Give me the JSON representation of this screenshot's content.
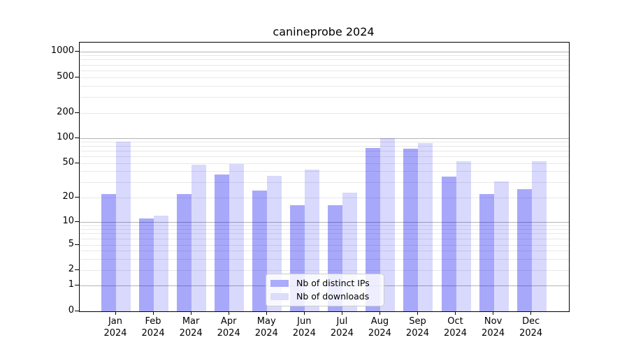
{
  "chart_data": {
    "type": "bar",
    "title": "canineprobe 2024",
    "categories": [
      "Jan 2024",
      "Feb 2024",
      "Mar 2024",
      "Apr 2024",
      "May 2024",
      "Jun 2024",
      "Jul 2024",
      "Aug 2024",
      "Sep 2024",
      "Oct 2024",
      "Nov 2024",
      "Dec 2024"
    ],
    "series": [
      {
        "name": "Nb of distinct IPs",
        "color": "rgba(0,0,240,0.34)",
        "solid_color": "#ababfa",
        "values": [
          22,
          11,
          22,
          37,
          24,
          16,
          16,
          76,
          75,
          35,
          22,
          25
        ]
      },
      {
        "name": "Nb of downloads",
        "color": "rgba(0,0,240,0.15)",
        "solid_color": "#dcdcfb",
        "values": [
          90,
          12,
          48,
          49,
          36,
          42,
          23,
          100,
          87,
          53,
          31,
          53
        ]
      }
    ],
    "xlabel": "",
    "ylabel": "",
    "yscale": "symlog",
    "yticks": [
      0,
      1,
      2,
      5,
      10,
      20,
      50,
      100,
      200,
      500,
      1000
    ],
    "ylim": [
      0,
      1275
    ],
    "grid": "horizontal major + log-minor gridlines",
    "legend_position": "lower center inside axes",
    "colors": {
      "major_gridline": "#b4b4b4",
      "minor_gridline": "#e8e8e8",
      "spine": "#000000",
      "text": "#000000",
      "legend_border": "#cccccc"
    }
  }
}
